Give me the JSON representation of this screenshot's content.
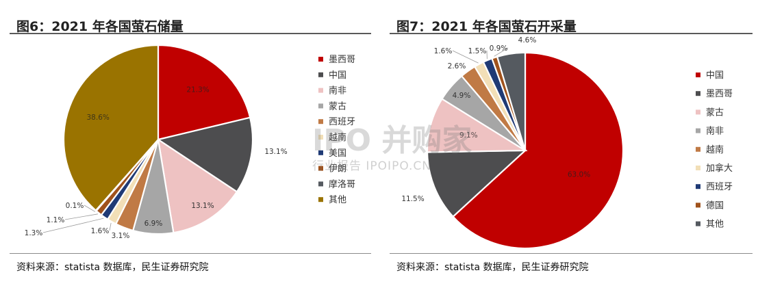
{
  "colors": {
    "red": "#c00000",
    "darkgray": "#4d4d4f",
    "pink": "#eec2c2",
    "gray": "#a6a6a6",
    "orange": "#c07a45",
    "cream": "#f2dfb7",
    "navy": "#1f3a75",
    "brown": "#a0521c",
    "slate": "#555a60",
    "olive": "#9a7300",
    "rule": "#5a5a5a"
  },
  "left": {
    "title": "图6：2021 年各国萤石储量",
    "source": "资料来源：statista 数据库，民生证券研究院"
  },
  "right": {
    "title": "图7：2021 年各国萤石开采量",
    "source": "资料来源：statista 数据库，民生证券研究院"
  },
  "watermark": {
    "main": "IPO 并购家",
    "sub": "行业报告 IPOIPO.CN"
  },
  "chart_data": [
    {
      "type": "pie",
      "title": "图6：2021 年各国萤石储量",
      "legend_position": "right",
      "slices": [
        {
          "name": "墨西哥",
          "value": 21.3,
          "label": "21.3%",
          "color": "#c00000"
        },
        {
          "name": "中国",
          "value": 13.1,
          "label": "13.1%",
          "color": "#4d4d4f"
        },
        {
          "name": "南非",
          "value": 13.1,
          "label": "13.1%",
          "color": "#eec2c2"
        },
        {
          "name": "蒙古",
          "value": 6.9,
          "label": "6.9%",
          "color": "#a6a6a6"
        },
        {
          "name": "西班牙",
          "value": 3.1,
          "label": "3.1%",
          "color": "#c07a45"
        },
        {
          "name": "越南",
          "value": 1.6,
          "label": "1.6%",
          "color": "#f2dfb7"
        },
        {
          "name": "美国",
          "value": 1.3,
          "label": "1.3%",
          "color": "#1f3a75"
        },
        {
          "name": "伊朗",
          "value": 1.1,
          "label": "1.1%",
          "color": "#a0521c"
        },
        {
          "name": "摩洛哥",
          "value": 0.1,
          "label": "0.1%",
          "color": "#555a60"
        },
        {
          "name": "其他",
          "value": 38.6,
          "label": "38.6%",
          "color": "#9a7300"
        }
      ]
    },
    {
      "type": "pie",
      "title": "图7：2021 年各国萤石开采量",
      "legend_position": "right",
      "slices": [
        {
          "name": "中国",
          "value": 63.0,
          "label": "63.0%",
          "color": "#c00000"
        },
        {
          "name": "墨西哥",
          "value": 11.5,
          "label": "11.5%",
          "color": "#4d4d4f"
        },
        {
          "name": "蒙古",
          "value": 9.1,
          "label": "9.1%",
          "color": "#eec2c2"
        },
        {
          "name": "南非",
          "value": 4.9,
          "label": "4.9%",
          "color": "#a6a6a6"
        },
        {
          "name": "越南",
          "value": 2.6,
          "label": "2.6%",
          "color": "#c07a45"
        },
        {
          "name": "加拿大",
          "value": 1.6,
          "label": "1.6%",
          "color": "#f2dfb7"
        },
        {
          "name": "西班牙",
          "value": 1.5,
          "label": "1.5%",
          "color": "#1f3a75"
        },
        {
          "name": "德国",
          "value": 0.9,
          "label": "0.9%",
          "color": "#a0521c"
        },
        {
          "name": "其他",
          "value": 4.6,
          "label": "4.6%",
          "color": "#555a60"
        }
      ]
    }
  ]
}
